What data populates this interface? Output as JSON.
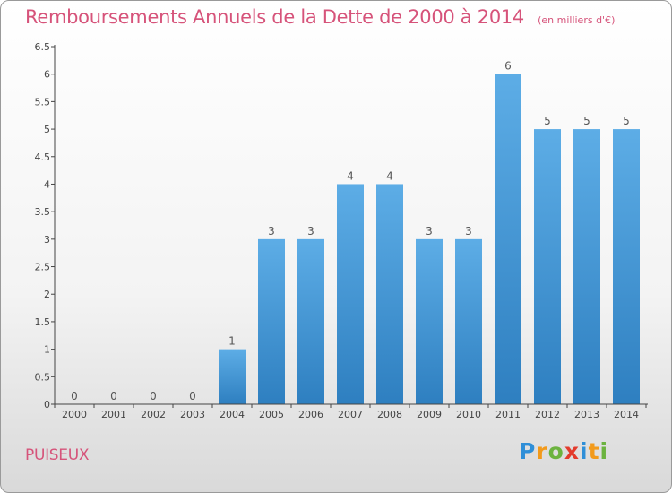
{
  "chart_data": {
    "type": "bar",
    "title": "Remboursements Annuels de la Dette de 2000 à 2014",
    "unit": "(en milliers d'€)",
    "categories": [
      "2000",
      "2001",
      "2002",
      "2003",
      "2004",
      "2005",
      "2006",
      "2007",
      "2008",
      "2009",
      "2010",
      "2011",
      "2012",
      "2013",
      "2014"
    ],
    "values": [
      0,
      0,
      0,
      0,
      1,
      3,
      3,
      4,
      4,
      3,
      3,
      6,
      5,
      5,
      5
    ],
    "data_labels": [
      "0",
      "0",
      "0",
      "0",
      "1",
      "3",
      "3",
      "4",
      "4",
      "3",
      "3",
      "6",
      "5",
      "5",
      "5"
    ],
    "y_ticks": [
      0,
      0.5,
      1,
      1.5,
      2,
      2.5,
      3,
      3.5,
      4,
      4.5,
      5,
      5.5,
      6,
      6.5
    ],
    "y_tick_labels": [
      "0",
      "0.5",
      "1",
      "1.5",
      "2",
      "2.5",
      "3",
      "3.5",
      "4",
      "4.5",
      "5",
      "5.5",
      "6",
      "6.5"
    ],
    "ylim": [
      0,
      6.5
    ],
    "grid": false,
    "bar_color": "#4f9fde",
    "xlabel": "",
    "ylabel": ""
  },
  "footer": {
    "commune": "PUISEUX",
    "logo_letters": [
      {
        "ch": "P",
        "color": "#2f8fd8"
      },
      {
        "ch": "r",
        "color": "#f29a1b"
      },
      {
        "ch": "o",
        "color": "#6cb33f"
      },
      {
        "ch": "x",
        "color": "#e33b2c"
      },
      {
        "ch": "i",
        "color": "#2f8fd8"
      },
      {
        "ch": "t",
        "color": "#f29a1b"
      },
      {
        "ch": "i",
        "color": "#6cb33f"
      }
    ]
  }
}
